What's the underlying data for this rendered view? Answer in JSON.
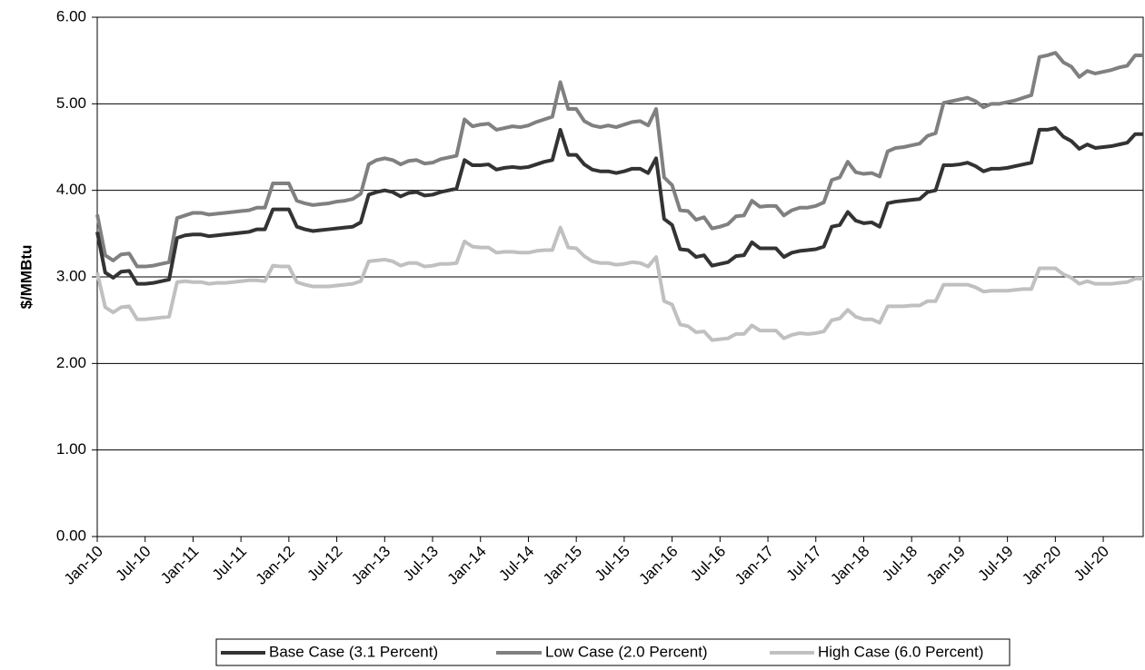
{
  "chart_data": {
    "type": "line",
    "y_label": "$/MMBtu",
    "categories": [
      "Jan-10",
      null,
      null,
      null,
      null,
      null,
      "Jul-10",
      null,
      null,
      null,
      null,
      null,
      "Jan-11",
      null,
      null,
      null,
      null,
      null,
      "Jul-11",
      null,
      null,
      null,
      null,
      null,
      "Jan-12",
      null,
      null,
      null,
      null,
      null,
      "Jul-12",
      null,
      null,
      null,
      null,
      null,
      "Jan-13",
      null,
      null,
      null,
      null,
      null,
      "Jul-13",
      null,
      null,
      null,
      null,
      null,
      "Jan-14",
      null,
      null,
      null,
      null,
      null,
      "Jul-14",
      null,
      null,
      null,
      null,
      null,
      "Jan-15",
      null,
      null,
      null,
      null,
      null,
      "Jul-15",
      null,
      null,
      null,
      null,
      null,
      "Jan-16",
      null,
      null,
      null,
      null,
      null,
      "Jul-16",
      null,
      null,
      null,
      null,
      null,
      "Jan-17",
      null,
      null,
      null,
      null,
      null,
      "Jul-17",
      null,
      null,
      null,
      null,
      null,
      "Jan-18",
      null,
      null,
      null,
      null,
      null,
      "Jul-18",
      null,
      null,
      null,
      null,
      null,
      "Jan-19",
      null,
      null,
      null,
      null,
      null,
      "Jul-19",
      null,
      null,
      null,
      null,
      null,
      "Jan-20",
      null,
      null,
      null,
      null,
      null,
      "Jul-20",
      null,
      null,
      null,
      null,
      null
    ],
    "series": [
      {
        "name": "Base Case (3.1 Percent)",
        "color": "#333333",
        "values": [
          3.52,
          3.05,
          2.99,
          3.06,
          3.07,
          2.92,
          2.92,
          2.93,
          2.95,
          2.97,
          3.45,
          3.48,
          3.49,
          3.49,
          3.47,
          3.48,
          3.49,
          3.5,
          3.51,
          3.52,
          3.55,
          3.55,
          3.78,
          3.78,
          3.78,
          3.58,
          3.55,
          3.53,
          3.54,
          3.55,
          3.56,
          3.57,
          3.58,
          3.63,
          3.95,
          3.98,
          4.0,
          3.98,
          3.93,
          3.97,
          3.98,
          3.94,
          3.95,
          3.98,
          4.0,
          4.02,
          4.35,
          4.29,
          4.29,
          4.3,
          4.24,
          4.26,
          4.27,
          4.26,
          4.27,
          4.3,
          4.33,
          4.35,
          4.7,
          4.41,
          4.41,
          4.3,
          4.24,
          4.22,
          4.22,
          4.2,
          4.22,
          4.25,
          4.25,
          4.2,
          4.37,
          3.67,
          3.6,
          3.32,
          3.31,
          3.23,
          3.25,
          3.13,
          3.15,
          3.17,
          3.24,
          3.25,
          3.4,
          3.33,
          3.33,
          3.33,
          3.23,
          3.28,
          3.3,
          3.31,
          3.32,
          3.35,
          3.58,
          3.6,
          3.75,
          3.65,
          3.62,
          3.63,
          3.58,
          3.85,
          3.87,
          3.88,
          3.89,
          3.9,
          3.98,
          4.0,
          4.29,
          4.29,
          4.3,
          4.32,
          4.28,
          4.22,
          4.25,
          4.25,
          4.26,
          4.28,
          4.3,
          4.32,
          4.7,
          4.7,
          4.72,
          4.62,
          4.57,
          4.48,
          4.53,
          4.49,
          4.5,
          4.51,
          4.53,
          4.55,
          4.65,
          4.65
        ]
      },
      {
        "name": "Low Case (2.0 Percent)",
        "color": "#808080",
        "values": [
          3.72,
          3.25,
          3.19,
          3.26,
          3.27,
          3.12,
          3.12,
          3.13,
          3.15,
          3.17,
          3.68,
          3.71,
          3.74,
          3.74,
          3.72,
          3.73,
          3.74,
          3.75,
          3.76,
          3.77,
          3.8,
          3.8,
          4.08,
          4.08,
          4.08,
          3.88,
          3.85,
          3.83,
          3.84,
          3.85,
          3.87,
          3.88,
          3.9,
          3.96,
          4.3,
          4.35,
          4.37,
          4.35,
          4.3,
          4.34,
          4.35,
          4.31,
          4.32,
          4.36,
          4.38,
          4.4,
          4.82,
          4.74,
          4.76,
          4.77,
          4.7,
          4.72,
          4.74,
          4.73,
          4.75,
          4.79,
          4.82,
          4.85,
          5.25,
          4.94,
          4.94,
          4.8,
          4.75,
          4.73,
          4.75,
          4.73,
          4.76,
          4.79,
          4.8,
          4.75,
          4.94,
          4.15,
          4.06,
          3.77,
          3.76,
          3.66,
          3.69,
          3.56,
          3.58,
          3.61,
          3.7,
          3.71,
          3.88,
          3.81,
          3.82,
          3.82,
          3.71,
          3.77,
          3.8,
          3.8,
          3.82,
          3.86,
          4.12,
          4.15,
          4.33,
          4.21,
          4.19,
          4.2,
          4.16,
          4.45,
          4.49,
          4.5,
          4.52,
          4.54,
          4.63,
          4.66,
          5.01,
          5.03,
          5.05,
          5.07,
          5.03,
          4.96,
          5.0,
          5.0,
          5.02,
          5.04,
          5.07,
          5.1,
          5.54,
          5.56,
          5.59,
          5.48,
          5.43,
          5.31,
          5.38,
          5.35,
          5.37,
          5.39,
          5.42,
          5.44,
          5.56,
          5.56
        ]
      },
      {
        "name": "High Case (6.0 Percent)",
        "color": "#c0c0c0",
        "values": [
          3.05,
          2.65,
          2.59,
          2.65,
          2.66,
          2.51,
          2.51,
          2.52,
          2.53,
          2.54,
          2.94,
          2.95,
          2.94,
          2.94,
          2.92,
          2.93,
          2.93,
          2.94,
          2.95,
          2.96,
          2.96,
          2.95,
          3.13,
          3.12,
          3.12,
          2.94,
          2.91,
          2.89,
          2.89,
          2.89,
          2.9,
          2.91,
          2.92,
          2.95,
          3.18,
          3.19,
          3.2,
          3.18,
          3.13,
          3.16,
          3.16,
          3.12,
          3.13,
          3.15,
          3.15,
          3.16,
          3.41,
          3.35,
          3.34,
          3.34,
          3.28,
          3.29,
          3.29,
          3.28,
          3.28,
          3.3,
          3.31,
          3.31,
          3.57,
          3.34,
          3.33,
          3.24,
          3.18,
          3.16,
          3.16,
          3.14,
          3.15,
          3.17,
          3.16,
          3.12,
          3.23,
          2.72,
          2.68,
          2.45,
          2.43,
          2.36,
          2.37,
          2.27,
          2.28,
          2.29,
          2.34,
          2.34,
          2.44,
          2.38,
          2.38,
          2.38,
          2.29,
          2.33,
          2.35,
          2.34,
          2.35,
          2.37,
          2.5,
          2.52,
          2.62,
          2.54,
          2.51,
          2.51,
          2.47,
          2.66,
          2.66,
          2.66,
          2.67,
          2.67,
          2.72,
          2.72,
          2.91,
          2.91,
          2.91,
          2.91,
          2.88,
          2.83,
          2.84,
          2.84,
          2.84,
          2.85,
          2.86,
          2.86,
          3.1,
          3.1,
          3.1,
          3.03,
          2.99,
          2.92,
          2.95,
          2.92,
          2.92,
          2.92,
          2.93,
          2.94,
          2.98,
          2.98
        ]
      }
    ],
    "ylim": [
      0,
      6
    ],
    "yticks": [
      {
        "value": 0,
        "label": "0.00"
      },
      {
        "value": 1,
        "label": "1.00"
      },
      {
        "value": 2,
        "label": "2.00"
      },
      {
        "value": 3,
        "label": "3.00"
      },
      {
        "value": 4,
        "label": "4.00"
      },
      {
        "value": 5,
        "label": "5.00"
      },
      {
        "value": 6,
        "label": "6.00"
      }
    ],
    "grid": true,
    "legend": "bottom"
  }
}
